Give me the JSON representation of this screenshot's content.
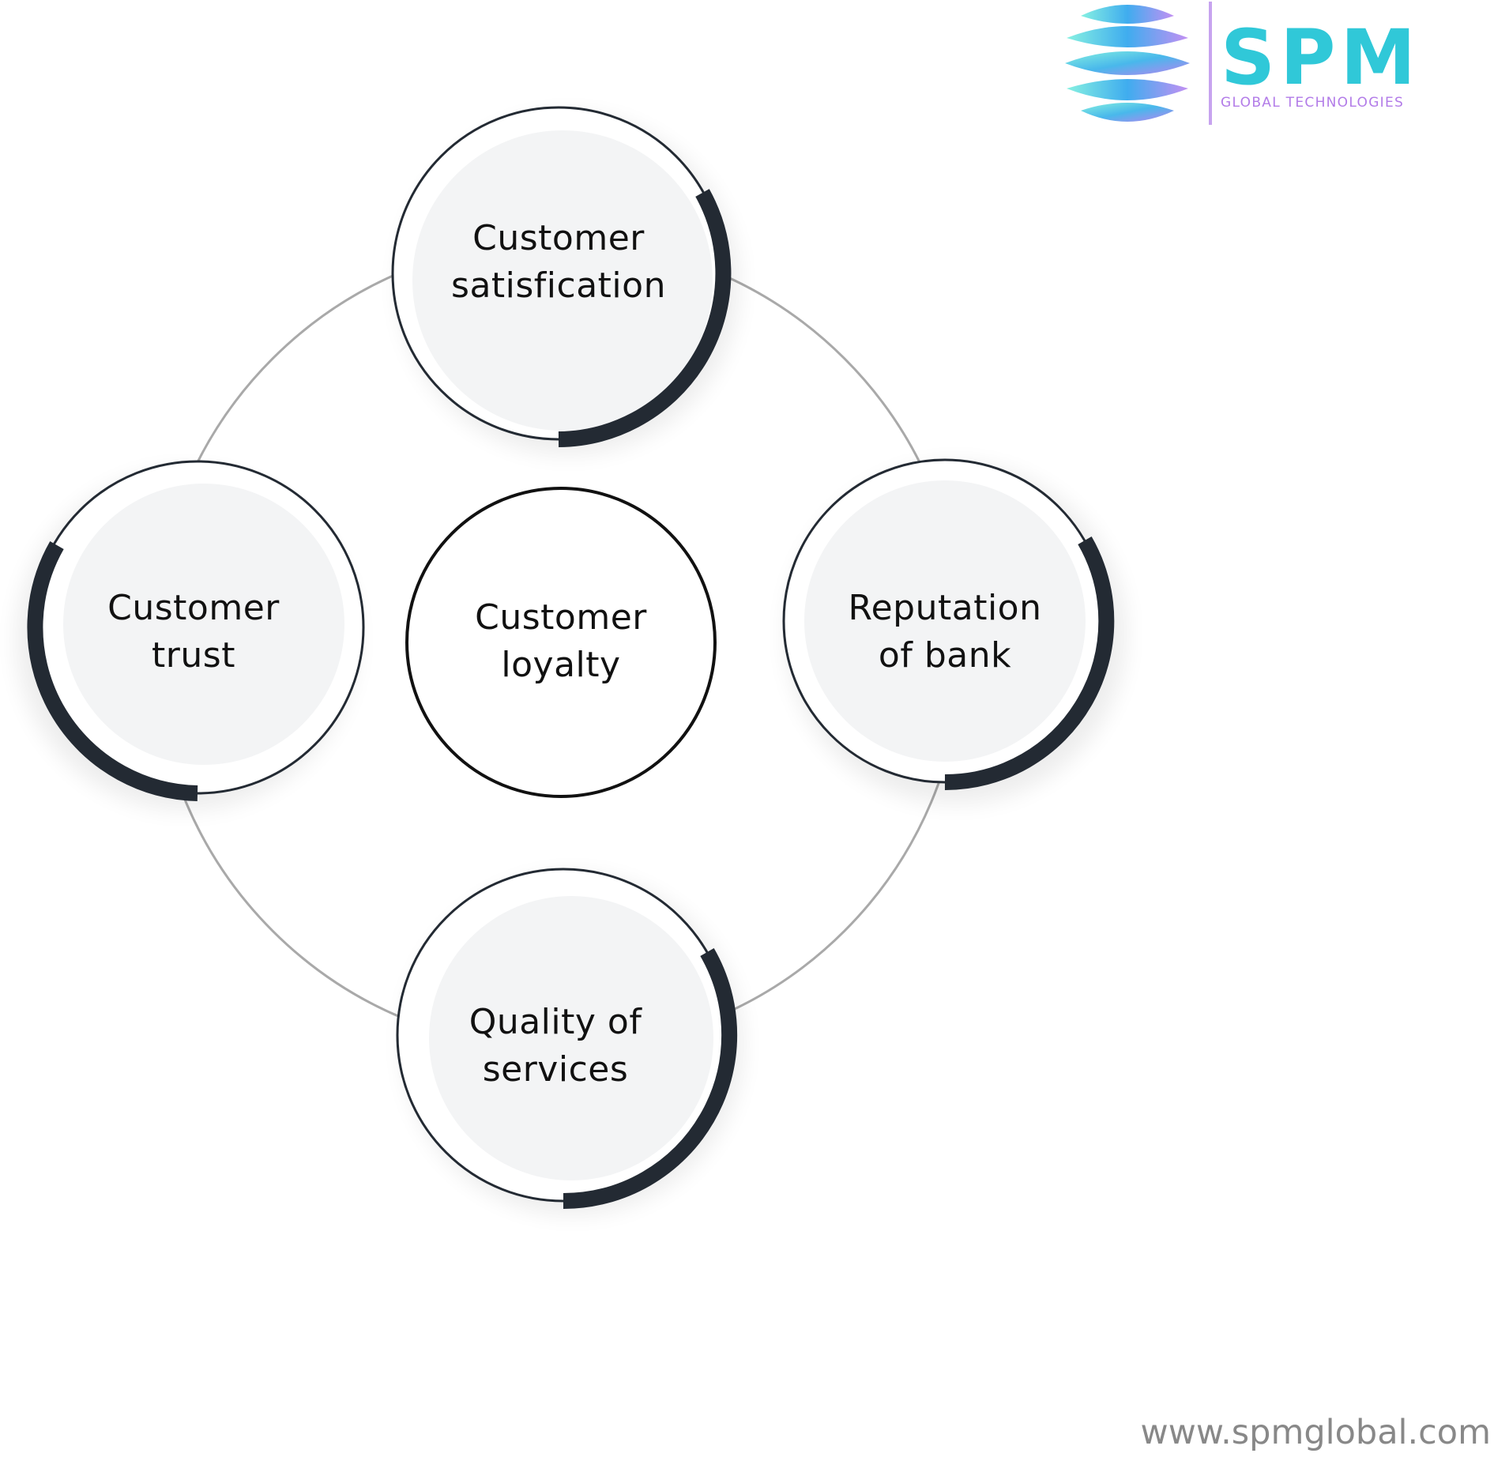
{
  "diagram": {
    "center": {
      "lines": [
        "Customer",
        "loyalty"
      ]
    },
    "nodes": [
      {
        "id": "satisfaction",
        "lines": [
          "Customer",
          "satisfication"
        ]
      },
      {
        "id": "trust",
        "lines": [
          "Customer",
          "trust"
        ]
      },
      {
        "id": "reputation",
        "lines": [
          "Reputation",
          "of bank"
        ]
      },
      {
        "id": "quality",
        "lines": [
          "Quality of",
          "services"
        ]
      }
    ]
  },
  "logo": {
    "main": "SPM",
    "sub": "GLOBAL TECHNOLOGIES"
  },
  "footer": {
    "website": "www.spmglobal.com"
  },
  "colors": {
    "ring": "#a9a9a9",
    "node_fill": "#f3f4f5",
    "arc": "#232a33",
    "brand_cyan": "#30c8d8",
    "brand_purple": "#b27be8"
  }
}
